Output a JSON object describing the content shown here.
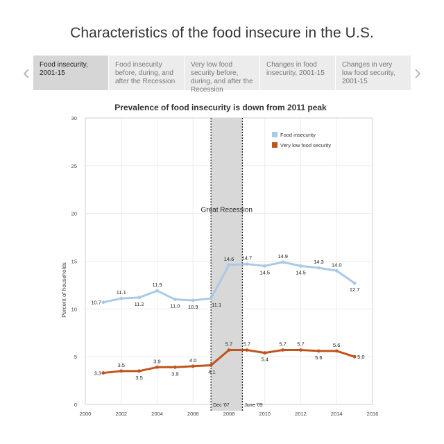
{
  "page": {
    "title": "Characteristics of the food insecure in the U.S."
  },
  "nav": {
    "prev_glyph": "‹",
    "next_glyph": "›"
  },
  "tabs": [
    {
      "label": "Food insecurity, 2001-15",
      "active": true
    },
    {
      "label": "Food insecurity before, during, and after the Recession",
      "active": false
    },
    {
      "label": "Very low food security before, during, and after the Recession",
      "active": false
    },
    {
      "label": "Changes in food insecurity, 2001-15",
      "active": false
    },
    {
      "label": "Changes in very low food security, 2001-15",
      "active": false
    }
  ],
  "chart_data": {
    "type": "line",
    "title": "Prevalence of food insecurity is down from 2011 peak",
    "ylabel": "Percent of households",
    "xlabel": "",
    "xlim": [
      2000,
      2016
    ],
    "ylim": [
      0,
      30
    ],
    "x_ticks": [
      2000,
      2002,
      2004,
      2006,
      2008,
      2010,
      2012,
      2014,
      2016
    ],
    "y_ticks": [
      0,
      5,
      10,
      15,
      20,
      25,
      30
    ],
    "grid": true,
    "legend_position": "top-right",
    "x": [
      2001,
      2002,
      2003,
      2004,
      2005,
      2006,
      2007,
      2008,
      2009,
      2010,
      2011,
      2012,
      2013,
      2014,
      2015
    ],
    "series": [
      {
        "name": "Food insecurity",
        "color": "#a9c9e8",
        "values": [
          10.7,
          11.1,
          11.2,
          11.9,
          11.0,
          10.9,
          11.1,
          14.6,
          14.7,
          14.5,
          14.9,
          14.5,
          14.3,
          14.0,
          12.7
        ],
        "labels": [
          "10.7",
          "11.1",
          "11.2",
          "11.9",
          "11.0",
          "10.9",
          "11.1",
          "14.6",
          "14.7",
          "14.5",
          "14.9",
          "14.5",
          "14.3",
          "14.0",
          "12.7"
        ]
      },
      {
        "name": "Very low food security",
        "color": "#c0541c",
        "values": [
          3.3,
          3.5,
          3.5,
          3.9,
          3.9,
          4.0,
          4.1,
          5.7,
          5.7,
          5.4,
          5.7,
          5.7,
          5.6,
          5.6,
          5.0
        ],
        "labels": [
          "3.3",
          "3.5",
          "3.5",
          "3.9",
          "3.9",
          "4.0",
          "4.1",
          "5.7",
          "5.7",
          "5.4",
          "5.7",
          "5.7",
          "5.6",
          "5.6",
          "5.0"
        ]
      }
    ],
    "recession": {
      "label": "Great Recession",
      "start": 2007.0,
      "end": 2008.75,
      "start_label": "Dec '07",
      "end_label": "June '09",
      "fill": "#d8d8d8"
    }
  }
}
